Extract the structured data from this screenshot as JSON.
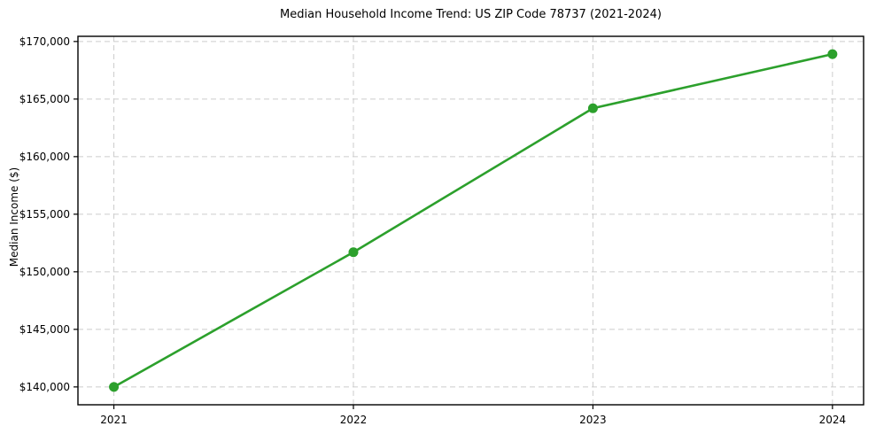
{
  "figure": {
    "background": "#ffffff"
  },
  "chart_data": {
    "type": "line",
    "title": "Median Household Income Trend: US ZIP Code 78737 (2021-2024)",
    "xlabel": "",
    "ylabel": "Median Income ($)",
    "x": [
      2021,
      2022,
      2023,
      2024
    ],
    "xtick_labels": [
      "2021",
      "2022",
      "2023",
      "2024"
    ],
    "series": [
      {
        "values": [
          140000,
          151700,
          164200,
          168900
        ],
        "color": "#2ca02c",
        "marker": "circle"
      }
    ],
    "yticks": [
      140000,
      145000,
      150000,
      155000,
      160000,
      165000,
      170000
    ],
    "ytick_labels": [
      "$140,000",
      "$145,000",
      "$150,000",
      "$155,000",
      "$160,000",
      "$165,000",
      "$170,000"
    ],
    "xlim": [
      2020.85,
      2024.13
    ],
    "ylim": [
      138450,
      170450
    ],
    "grid": "dashed-both",
    "grid_color": "#cccccc",
    "spine_color": "#000000",
    "legend": "none"
  }
}
